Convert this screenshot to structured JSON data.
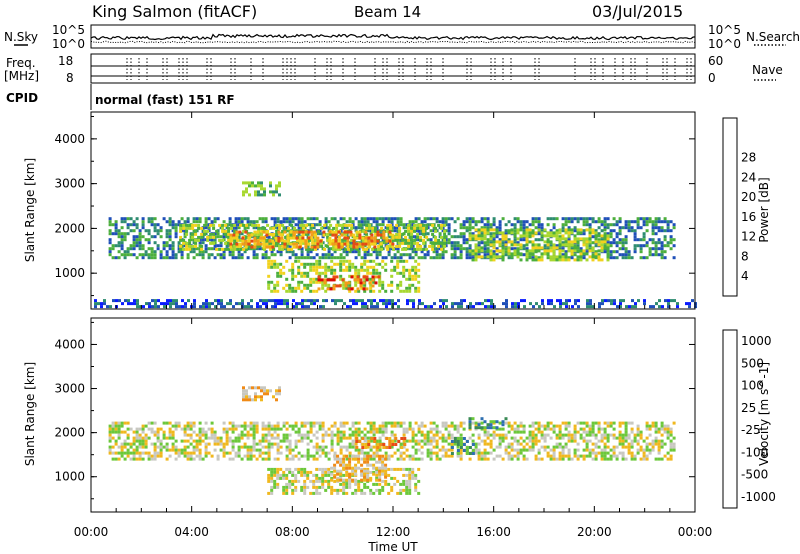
{
  "header": {
    "station": "King Salmon (fitACF)",
    "beam": "Beam 14",
    "date": "03/Jul/2015"
  },
  "top_panels": {
    "nsky_label": "N.Sky",
    "nsearch_label": "N.Search",
    "nsky_ticks": [
      "10^5",
      "10^0"
    ],
    "nsearch_ticks": [
      "10^5",
      "10^0"
    ],
    "freq_label_line1": "Freq.",
    "freq_label_line2": "[MHz]",
    "freq_ticks": [
      "18",
      "8"
    ],
    "nave_label": "Nave",
    "nave_ticks": [
      "60",
      "0"
    ],
    "cpid_label": "CPID",
    "cpid_text": "normal (fast) 151 RF"
  },
  "chart_data": [
    {
      "type": "heatmap",
      "name": "power",
      "ylabel": "Slant Range [km]",
      "yticks": [
        "1000",
        "2000",
        "3000",
        "4000"
      ],
      "ylim": [
        200,
        4600
      ],
      "xlim": [
        0,
        24
      ],
      "colorbar_label": "Power [dB]",
      "colorbar_ticks": [
        "4",
        "8",
        "12",
        "16",
        "20",
        "24",
        "28"
      ],
      "colors": [
        "#0a1bff",
        "#1f4fb8",
        "#2e8c70",
        "#4caf3c",
        "#a8d830",
        "#f2d21e",
        "#f39c1a",
        "#e64a16",
        "#d80a0a"
      ],
      "regions": [
        {
          "t0": 0.7,
          "t1": 23.2,
          "r0": 1350,
          "r1": 2250,
          "level": 2
        },
        {
          "t0": 3.5,
          "t1": 14.0,
          "r0": 1500,
          "r1": 2100,
          "level": 4
        },
        {
          "t0": 5.5,
          "t1": 12.0,
          "r0": 1600,
          "r1": 1950,
          "level": 6
        },
        {
          "t0": 7.0,
          "t1": 13.0,
          "r0": 600,
          "r1": 1300,
          "level": 4
        },
        {
          "t0": 9.0,
          "t1": 11.5,
          "r0": 650,
          "r1": 950,
          "level": 7
        },
        {
          "t0": 15.0,
          "t1": 20.5,
          "r0": 1300,
          "r1": 2000,
          "level": 4
        },
        {
          "t0": 6.0,
          "t1": 7.5,
          "r0": 2750,
          "r1": 3050,
          "level": 3
        },
        {
          "t0": 0.0,
          "t1": 24.0,
          "r0": 250,
          "r1": 420,
          "level": 1
        }
      ]
    },
    {
      "type": "heatmap",
      "name": "velocity",
      "ylabel": "Slant Range [km]",
      "yticks": [
        "1000",
        "2000",
        "3000",
        "4000"
      ],
      "ylim": [
        200,
        4600
      ],
      "xlim": [
        0,
        24
      ],
      "xlabel": "Time UT",
      "xticks": [
        "00:00",
        "04:00",
        "08:00",
        "12:00",
        "16:00",
        "20:00",
        "00:00"
      ],
      "colorbar_label": "Velocity [m s^-1]",
      "colorbar_ticks": [
        "1000",
        "500",
        "100",
        "25",
        "-25",
        "-100",
        "-500",
        "-1000"
      ],
      "colors": [
        "#1030c0",
        "#2e6fb0",
        "#3a8a55",
        "#6cc83a",
        "#c8c8c0",
        "#f0b81e",
        "#f08a16",
        "#e84a16",
        "#d81010"
      ],
      "regions": [
        {
          "t0": 0.7,
          "t1": 23.2,
          "r0": 1400,
          "r1": 2250,
          "level": 4
        },
        {
          "t0": 7.0,
          "t1": 13.0,
          "r0": 600,
          "r1": 1200,
          "level": 4
        },
        {
          "t0": 9.5,
          "t1": 11.7,
          "r0": 900,
          "r1": 1500,
          "level": 5
        },
        {
          "t0": 6.0,
          "t1": 7.5,
          "r0": 2750,
          "r1": 3050,
          "level": 5
        },
        {
          "t0": 10.5,
          "t1": 12.5,
          "r0": 1650,
          "r1": 1900,
          "level": 6
        },
        {
          "t0": 15.0,
          "t1": 16.5,
          "r0": 2100,
          "r1": 2350,
          "level": 2
        },
        {
          "t0": 14.3,
          "t1": 15.2,
          "r0": 1500,
          "r1": 1900,
          "level": 2
        }
      ]
    }
  ]
}
